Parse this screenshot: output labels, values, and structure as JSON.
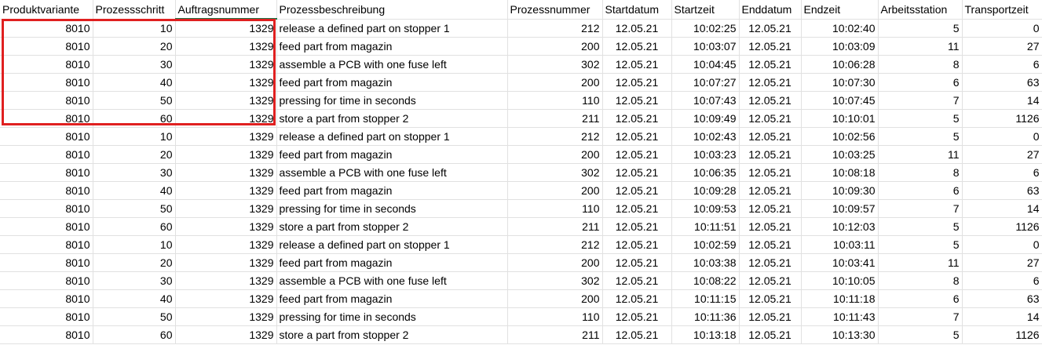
{
  "sheet": {
    "columns": [
      "Produktvariante",
      "Prozessschritt",
      "Auftragsnummer",
      "Prozessbeschreibung",
      "Prozessnummer",
      "Startdatum",
      "Startzeit",
      "Enddatum",
      "Endzeit",
      "Arbeitsstation",
      "Transportzeit"
    ],
    "rows": [
      [
        "8010",
        "10",
        "1329",
        "release a defined part on stopper 1",
        "212",
        "12.05.21",
        "10:02:25",
        "12.05.21",
        "10:02:40",
        "5",
        "0"
      ],
      [
        "8010",
        "20",
        "1329",
        "feed part from magazin",
        "200",
        "12.05.21",
        "10:03:07",
        "12.05.21",
        "10:03:09",
        "11",
        "27"
      ],
      [
        "8010",
        "30",
        "1329",
        "assemble a PCB with one fuse left",
        "302",
        "12.05.21",
        "10:04:45",
        "12.05.21",
        "10:06:28",
        "8",
        "6"
      ],
      [
        "8010",
        "40",
        "1329",
        "feed part from magazin",
        "200",
        "12.05.21",
        "10:07:27",
        "12.05.21",
        "10:07:30",
        "6",
        "63"
      ],
      [
        "8010",
        "50",
        "1329",
        "pressing for time in seconds",
        "110",
        "12.05.21",
        "10:07:43",
        "12.05.21",
        "10:07:45",
        "7",
        "14"
      ],
      [
        "8010",
        "60",
        "1329",
        "store a part from stopper 2",
        "211",
        "12.05.21",
        "10:09:49",
        "12.05.21",
        "10:10:01",
        "5",
        "1126"
      ],
      [
        "8010",
        "10",
        "1329",
        "release a defined part on stopper 1",
        "212",
        "12.05.21",
        "10:02:43",
        "12.05.21",
        "10:02:56",
        "5",
        "0"
      ],
      [
        "8010",
        "20",
        "1329",
        "feed part from magazin",
        "200",
        "12.05.21",
        "10:03:23",
        "12.05.21",
        "10:03:25",
        "11",
        "27"
      ],
      [
        "8010",
        "30",
        "1329",
        "assemble a PCB with one fuse left",
        "302",
        "12.05.21",
        "10:06:35",
        "12.05.21",
        "10:08:18",
        "8",
        "6"
      ],
      [
        "8010",
        "40",
        "1329",
        "feed part from magazin",
        "200",
        "12.05.21",
        "10:09:28",
        "12.05.21",
        "10:09:30",
        "6",
        "63"
      ],
      [
        "8010",
        "50",
        "1329",
        "pressing for time in seconds",
        "110",
        "12.05.21",
        "10:09:53",
        "12.05.21",
        "10:09:57",
        "7",
        "14"
      ],
      [
        "8010",
        "60",
        "1329",
        "store a part from stopper 2",
        "211",
        "12.05.21",
        "10:11:51",
        "12.05.21",
        "10:12:03",
        "5",
        "1126"
      ],
      [
        "8010",
        "10",
        "1329",
        "release a defined part on stopper 1",
        "212",
        "12.05.21",
        "10:02:59",
        "12.05.21",
        "10:03:11",
        "5",
        "0"
      ],
      [
        "8010",
        "20",
        "1329",
        "feed part from magazin",
        "200",
        "12.05.21",
        "10:03:38",
        "12.05.21",
        "10:03:41",
        "11",
        "27"
      ],
      [
        "8010",
        "30",
        "1329",
        "assemble a PCB with one fuse left",
        "302",
        "12.05.21",
        "10:08:22",
        "12.05.21",
        "10:10:05",
        "8",
        "6"
      ],
      [
        "8010",
        "40",
        "1329",
        "feed part from magazin",
        "200",
        "12.05.21",
        "10:11:15",
        "12.05.21",
        "10:11:18",
        "6",
        "63"
      ],
      [
        "8010",
        "50",
        "1329",
        "pressing for time in seconds",
        "110",
        "12.05.21",
        "10:11:36",
        "12.05.21",
        "10:11:43",
        "7",
        "14"
      ],
      [
        "8010",
        "60",
        "1329",
        "store a part from stopper 2",
        "211",
        "12.05.21",
        "10:13:18",
        "12.05.21",
        "10:13:30",
        "5",
        "1126"
      ]
    ],
    "alignment": [
      "right",
      "right",
      "right",
      "left",
      "right",
      "center",
      "right",
      "center",
      "right",
      "right",
      "right"
    ],
    "active_column_index": 2,
    "colors": {
      "gridline": "#e1e1e1",
      "active_header_underline": "#1e7145",
      "selection_highlight": "#e02020"
    }
  }
}
